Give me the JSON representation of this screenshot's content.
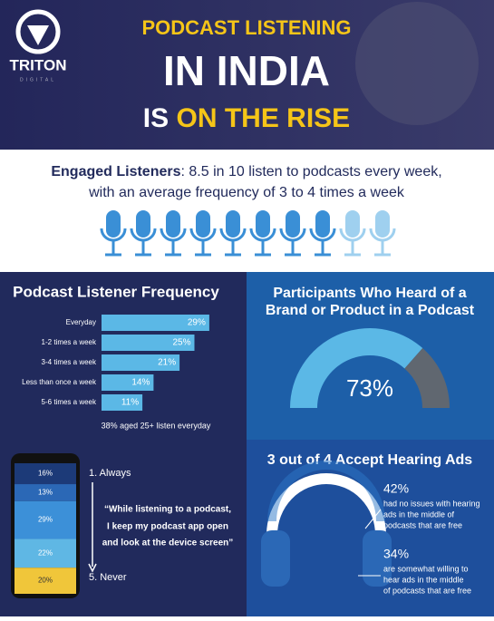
{
  "header": {
    "logo": "TRITON",
    "logo_sub": "DIGITAL",
    "title_line1": "PODCAST LISTENING",
    "title_line2": "IN INDIA",
    "title_line3_a": "IS",
    "title_line3_b": "ON THE RISE"
  },
  "engaged": {
    "lead": "Engaged Listeners",
    "line1": ": 8.5 in 10 listen to podcasts every week,",
    "line2": "with an average frequency of 3 to 4 times a week"
  },
  "frequency": {
    "type": "bar",
    "title": "Podcast Listener Frequency",
    "categories": [
      "Everyday",
      "1-2 times a week",
      "3-4 times a week",
      "Less than once a week",
      "5-6 times a week"
    ],
    "values": [
      29,
      25,
      21,
      14,
      11
    ],
    "value_labels": [
      "29%",
      "25%",
      "21%",
      "14%",
      "11%"
    ],
    "color": "#5bb8e6",
    "note": "38% aged 25+ listen everyday"
  },
  "brand": {
    "type": "gauge",
    "title_lines": [
      "Participants Who Heard of a",
      "Brand or Product in a Podcast"
    ],
    "value": 73,
    "value_label": "73%",
    "range": [
      0,
      100
    ],
    "color": "#5bb8e6",
    "rest_color": "#606770"
  },
  "phone": {
    "type": "stacked_bar",
    "values": [
      16,
      13,
      29,
      22,
      20
    ],
    "value_labels": [
      "16%",
      "13%",
      "29%",
      "22%",
      "20%"
    ],
    "colors": [
      "#1c3a78",
      "#2b68b6",
      "#3c90d8",
      "#5fb7e4",
      "#f0c63a"
    ],
    "top_label": "1. Always",
    "bottom_label": "5. Never",
    "quote_lines": [
      "“While listening to a podcast,",
      "I keep my podcast app open",
      "and look at the device screen”"
    ]
  },
  "ads": {
    "title": "3 out of 4 Accept Hearing Ads",
    "items": [
      {
        "value": 42,
        "value_label": "42%",
        "lines": [
          "had no issues with hearing",
          "ads in the middle of",
          "podcasts that are free"
        ]
      },
      {
        "value": 34,
        "value_label": "34%",
        "lines": [
          "are somewhat willing to",
          "hear ads in the middle",
          "of podcasts that are free"
        ]
      }
    ]
  }
}
